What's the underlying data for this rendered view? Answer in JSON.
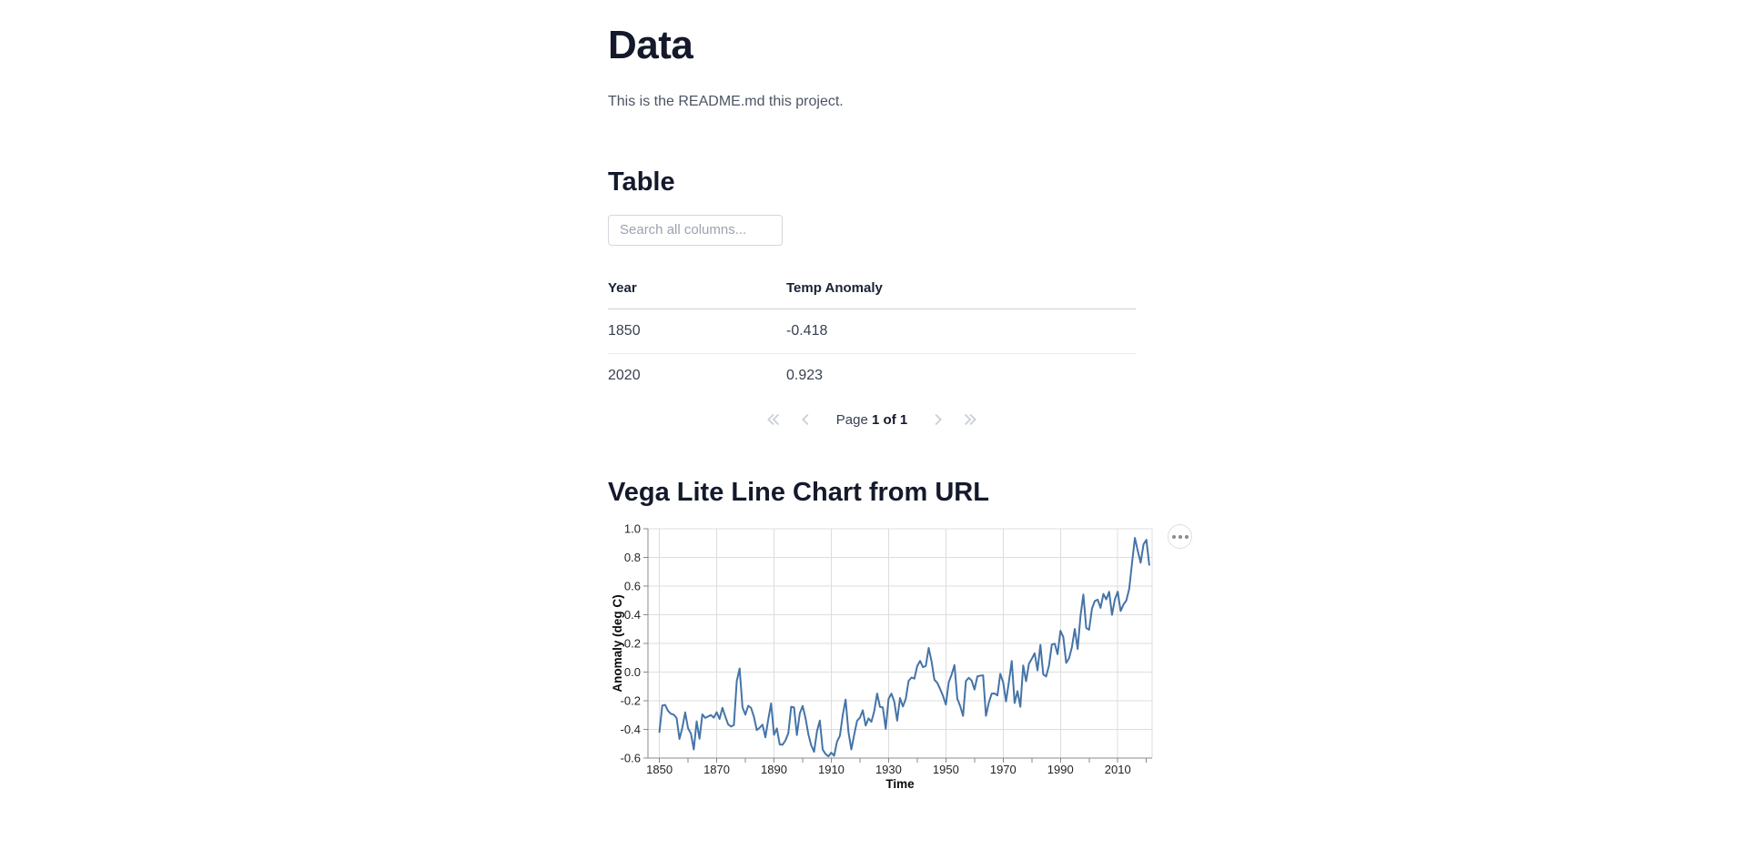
{
  "page": {
    "title": "Data",
    "intro": "This is the README.md this project."
  },
  "table_section": {
    "heading": "Table",
    "search_placeholder": "Search all columns...",
    "columns": [
      "Year",
      "Temp Anomaly"
    ],
    "rows": [
      {
        "year": "1850",
        "temp_anomaly": "-0.418"
      },
      {
        "year": "2020",
        "temp_anomaly": "0.923"
      }
    ],
    "pagination": {
      "page_label": "Page",
      "page_value": "1 of 1",
      "icons": [
        "double-chevron-left",
        "chevron-left",
        "chevron-right",
        "double-chevron-right"
      ]
    }
  },
  "chart_section": {
    "heading": "Vega Lite Line Chart from URL",
    "actions_icon": "ellipsis"
  },
  "chart_data": {
    "type": "line",
    "title": "",
    "xlabel": "Time",
    "ylabel": "Anomaly (deg C)",
    "x_domain": [
      1846,
      2022
    ],
    "ylim": [
      -0.6,
      1.0
    ],
    "x_ticks": [
      1850,
      1870,
      1890,
      1910,
      1930,
      1950,
      1970,
      1990,
      2010
    ],
    "x_minor_tick_step": 10,
    "y_ticks": [
      -0.6,
      -0.4,
      -0.2,
      0.0,
      0.2,
      0.4,
      0.6,
      0.8,
      1.0
    ],
    "grid": true,
    "legend": "none",
    "line_color": "#4574a7",
    "grid_color": "#dddddd",
    "axis_color": "#888888",
    "series": [
      {
        "name": "temp_anomaly",
        "x_start": 1850,
        "x_step": 1,
        "x_end": 2021,
        "values": [
          -0.418,
          -0.233,
          -0.229,
          -0.27,
          -0.291,
          -0.297,
          -0.32,
          -0.467,
          -0.388,
          -0.281,
          -0.392,
          -0.429,
          -0.54,
          -0.344,
          -0.465,
          -0.295,
          -0.32,
          -0.31,
          -0.3,
          -0.318,
          -0.28,
          -0.327,
          -0.249,
          -0.31,
          -0.365,
          -0.38,
          -0.37,
          -0.064,
          0.025,
          -0.245,
          -0.297,
          -0.235,
          -0.25,
          -0.312,
          -0.405,
          -0.388,
          -0.367,
          -0.455,
          -0.33,
          -0.218,
          -0.438,
          -0.393,
          -0.505,
          -0.507,
          -0.477,
          -0.427,
          -0.242,
          -0.247,
          -0.44,
          -0.289,
          -0.236,
          -0.32,
          -0.434,
          -0.512,
          -0.556,
          -0.414,
          -0.338,
          -0.54,
          -0.572,
          -0.588,
          -0.562,
          -0.584,
          -0.485,
          -0.445,
          -0.3,
          -0.192,
          -0.418,
          -0.54,
          -0.437,
          -0.34,
          -0.318,
          -0.267,
          -0.373,
          -0.323,
          -0.347,
          -0.273,
          -0.15,
          -0.243,
          -0.247,
          -0.396,
          -0.187,
          -0.15,
          -0.207,
          -0.339,
          -0.181,
          -0.24,
          -0.187,
          -0.061,
          -0.038,
          -0.046,
          0.042,
          0.078,
          0.034,
          0.043,
          0.168,
          0.075,
          -0.054,
          -0.075,
          -0.118,
          -0.166,
          -0.227,
          -0.071,
          -0.018,
          0.049,
          -0.186,
          -0.237,
          -0.306,
          -0.062,
          -0.04,
          -0.059,
          -0.122,
          -0.03,
          -0.025,
          -0.023,
          -0.305,
          -0.213,
          -0.15,
          -0.149,
          -0.163,
          -0.012,
          -0.071,
          -0.205,
          -0.069,
          0.077,
          -0.216,
          -0.133,
          -0.242,
          0.046,
          -0.064,
          0.058,
          0.093,
          0.131,
          0.012,
          0.19,
          -0.016,
          -0.031,
          0.045,
          0.192,
          0.198,
          0.125,
          0.288,
          0.244,
          0.064,
          0.096,
          0.174,
          0.301,
          0.161,
          0.391,
          0.541,
          0.308,
          0.295,
          0.443,
          0.496,
          0.505,
          0.448,
          0.545,
          0.507,
          0.56,
          0.399,
          0.507,
          0.561,
          0.426,
          0.471,
          0.5,
          0.58,
          0.763,
          0.936,
          0.845,
          0.763,
          0.891,
          0.923,
          0.748
        ]
      }
    ]
  }
}
